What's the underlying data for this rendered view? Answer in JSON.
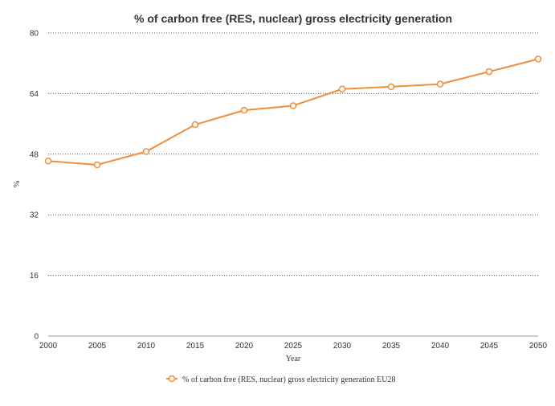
{
  "chart_data": {
    "type": "line",
    "title": "% of carbon free (RES, nuclear) gross electricity generation",
    "xlabel": "Year",
    "ylabel": "%",
    "x": [
      2000,
      2005,
      2010,
      2015,
      2020,
      2025,
      2030,
      2035,
      2040,
      2045,
      2050
    ],
    "ylim": [
      0,
      80
    ],
    "yticks": [
      0,
      16,
      32,
      48,
      64,
      80
    ],
    "grid": true,
    "legend_position": "bottom-center",
    "series": [
      {
        "name": "% of carbon free (RES, nuclear) gross electricity generation EU28",
        "color": "#F28C38",
        "values": [
          46.2,
          45.2,
          48.7,
          55.8,
          59.6,
          60.8,
          65.2,
          65.8,
          66.5,
          69.8,
          73.1
        ]
      }
    ]
  }
}
